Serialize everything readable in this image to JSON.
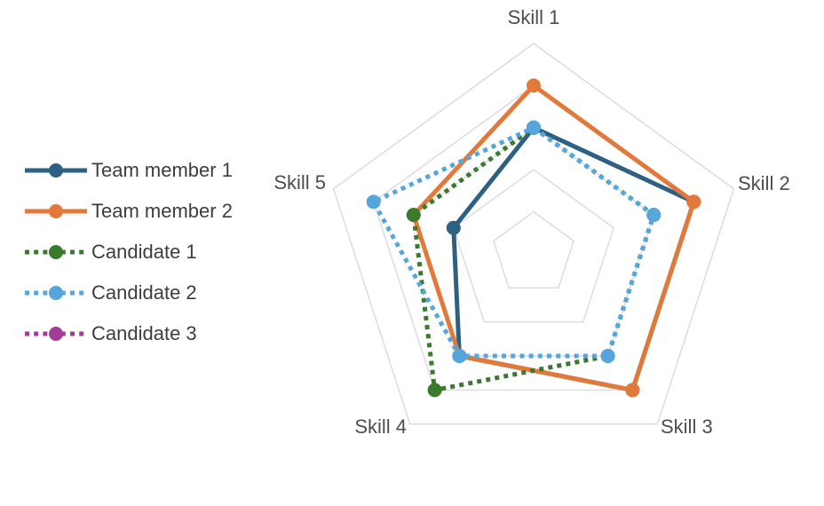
{
  "chart_data": {
    "type": "radar",
    "title": "",
    "categories": [
      "Skill 1",
      "Skill 2",
      "Skill 3",
      "Skill 4",
      "Skill 5"
    ],
    "axis_range": [
      0,
      5
    ],
    "ring_interval": 1,
    "rings_visible": 5,
    "grid": "concentric pentagon rings, no radial spokes, no tick labels",
    "legend_position": "left",
    "series": [
      {
        "name": "Team member 1",
        "color": "#2E6083",
        "style": "solid",
        "marker": "circle",
        "values": [
          3,
          4,
          4,
          3,
          2
        ]
      },
      {
        "name": "Team member 2",
        "color": "#E2793B",
        "style": "solid",
        "marker": "circle",
        "values": [
          4,
          4,
          4,
          3,
          3
        ]
      },
      {
        "name": "Candidate 1",
        "color": "#3A7A2D",
        "style": "dashed",
        "marker": "circle",
        "values": [
          3,
          3,
          3,
          4,
          3
        ]
      },
      {
        "name": "Candidate 2",
        "color": "#55A6DC",
        "style": "dashed",
        "marker": "circle",
        "values": [
          3,
          3,
          3,
          3,
          4
        ]
      },
      {
        "name": "Candidate 3",
        "color": "#A23C96",
        "style": "dashed",
        "marker": "circle",
        "values": []
      }
    ]
  },
  "colors": {
    "background": "#FFFFFF",
    "grid": "#DADADA",
    "category_label": "#4D4D4D",
    "legend_text": "#3D3D3D"
  }
}
